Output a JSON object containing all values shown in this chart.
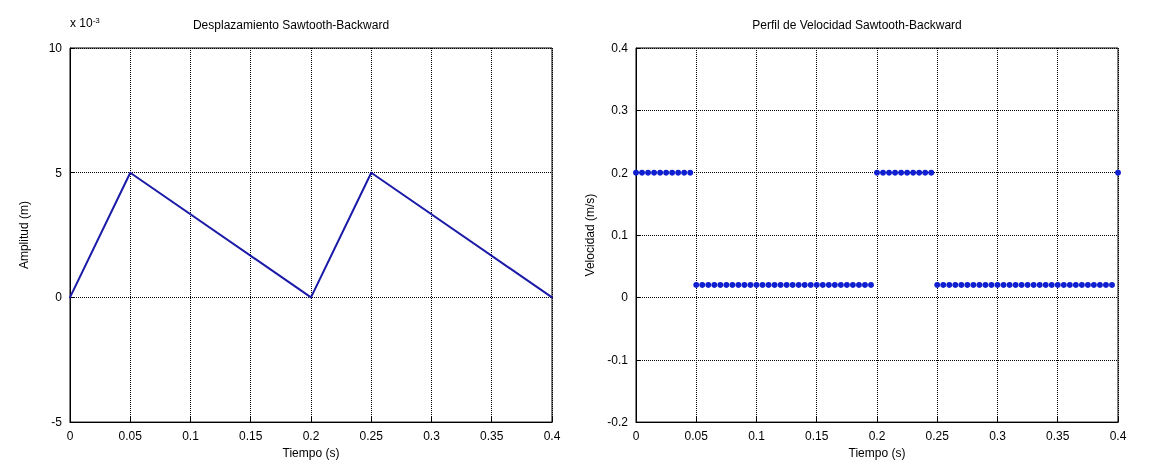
{
  "chart_data": [
    {
      "type": "line",
      "title": "Desplazamiento Sawtooth-Backward",
      "xlabel": "Tiempo (s)",
      "ylabel": "Amplitud (m)",
      "annotations": [
        "x 10$^{-3}$"
      ],
      "x": [
        0,
        0.05,
        0.2,
        0.25,
        0.4
      ],
      "series": [
        {
          "color": "#1a1aa8",
          "values": [
            0,
            5,
            0,
            5,
            0
          ]
        }
      ],
      "xlim": [
        0,
        0.4
      ],
      "xticks": [
        0,
        0.05,
        0.1,
        0.15,
        0.2,
        0.25,
        0.3,
        0.35,
        0.4
      ],
      "ylim": [
        -5,
        10
      ],
      "yticks": [
        -5,
        0,
        5,
        10
      ],
      "grid": true,
      "marker": "none",
      "line_style": "solid"
    },
    {
      "type": "scatter",
      "title": "Perfil de Velocidad Sawtooth-Backward",
      "xlabel": "Tiempo (s)",
      "ylabel": "Velocidad (m/s)",
      "x": [
        0,
        0.005,
        0.01,
        0.015,
        0.02,
        0.025,
        0.03,
        0.035,
        0.04,
        0.045,
        0.05,
        0.055,
        0.06,
        0.065,
        0.07,
        0.075,
        0.08,
        0.085,
        0.09,
        0.095,
        0.1,
        0.105,
        0.11,
        0.115,
        0.12,
        0.125,
        0.13,
        0.135,
        0.14,
        0.145,
        0.15,
        0.155,
        0.16,
        0.165,
        0.17,
        0.175,
        0.18,
        0.185,
        0.19,
        0.195,
        0.2,
        0.205,
        0.21,
        0.215,
        0.22,
        0.225,
        0.23,
        0.235,
        0.24,
        0.245,
        0.25,
        0.255,
        0.26,
        0.265,
        0.27,
        0.275,
        0.28,
        0.285,
        0.29,
        0.295,
        0.3,
        0.305,
        0.31,
        0.315,
        0.32,
        0.325,
        0.33,
        0.335,
        0.34,
        0.345,
        0.35,
        0.355,
        0.36,
        0.365,
        0.37,
        0.375,
        0.38,
        0.385,
        0.39,
        0.395,
        0.4
      ],
      "series": [
        {
          "color": "#1020d0",
          "values": [
            0.2,
            0.2,
            0.2,
            0.2,
            0.2,
            0.2,
            0.2,
            0.2,
            0.2,
            0.2,
            0.02,
            0.02,
            0.02,
            0.02,
            0.02,
            0.02,
            0.02,
            0.02,
            0.02,
            0.02,
            0.02,
            0.02,
            0.02,
            0.02,
            0.02,
            0.02,
            0.02,
            0.02,
            0.02,
            0.02,
            0.02,
            0.02,
            0.02,
            0.02,
            0.02,
            0.02,
            0.02,
            0.02,
            0.02,
            0.02,
            0.2,
            0.2,
            0.2,
            0.2,
            0.2,
            0.2,
            0.2,
            0.2,
            0.2,
            0.2,
            0.02,
            0.02,
            0.02,
            0.02,
            0.02,
            0.02,
            0.02,
            0.02,
            0.02,
            0.02,
            0.02,
            0.02,
            0.02,
            0.02,
            0.02,
            0.02,
            0.02,
            0.02,
            0.02,
            0.02,
            0.02,
            0.02,
            0.02,
            0.02,
            0.02,
            0.02,
            0.02,
            0.02,
            0.02,
            0.02,
            0.2
          ]
        }
      ],
      "xlim": [
        0,
        0.4
      ],
      "xticks": [
        0,
        0.05,
        0.1,
        0.15,
        0.2,
        0.25,
        0.3,
        0.35,
        0.4
      ],
      "ylim": [
        -0.2,
        0.4
      ],
      "yticks": [
        -0.2,
        -0.1,
        0,
        0.1,
        0.2,
        0.3,
        0.4
      ],
      "grid": true,
      "marker": "circle"
    }
  ]
}
